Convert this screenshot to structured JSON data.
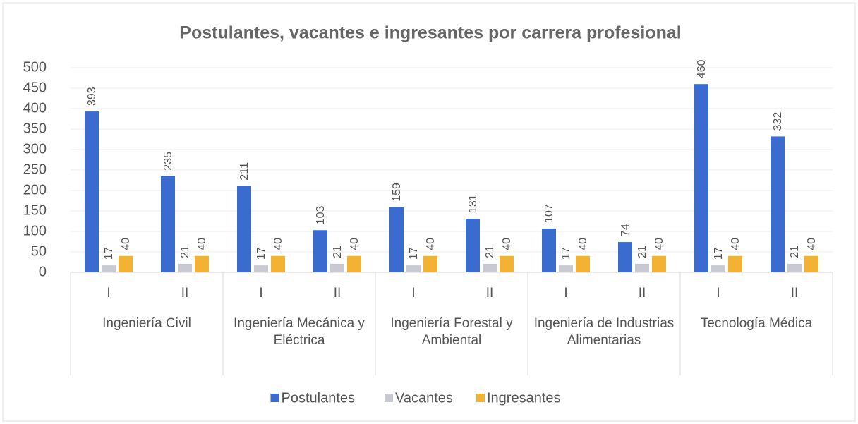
{
  "chart_data": {
    "type": "bar",
    "title": "Postulantes, vacantes e ingresantes por carrera profesional",
    "groups": [
      {
        "label": "Ingeniería Civil",
        "categories": [
          "I",
          "II"
        ]
      },
      {
        "label": "Ingeniería Mecánica y Eléctrica",
        "categories": [
          "I",
          "II"
        ]
      },
      {
        "label": "Ingeniería Forestal y Ambiental",
        "categories": [
          "I",
          "II"
        ]
      },
      {
        "label": "Ingeniería de Industrias Alimentarias",
        "categories": [
          "I",
          "II"
        ]
      },
      {
        "label": "Tecnología Médica",
        "categories": [
          "I",
          "II"
        ]
      }
    ],
    "series": [
      {
        "name": "Postulantes",
        "color": "#3a6cd0",
        "values": [
          393,
          235,
          211,
          103,
          159,
          131,
          107,
          74,
          460,
          332
        ]
      },
      {
        "name": "Vacantes",
        "color": "#c9c9d2",
        "values": [
          17,
          21,
          17,
          21,
          17,
          21,
          17,
          21,
          17,
          21
        ]
      },
      {
        "name": "Ingresantes",
        "color": "#f4b232",
        "values": [
          40,
          40,
          40,
          40,
          40,
          40,
          40,
          40,
          40,
          40
        ]
      }
    ],
    "ylim": [
      0,
      500
    ],
    "yticks": [
      0,
      50,
      100,
      150,
      200,
      250,
      300,
      350,
      400,
      450,
      500
    ],
    "grid": true,
    "legend": "bottom"
  }
}
